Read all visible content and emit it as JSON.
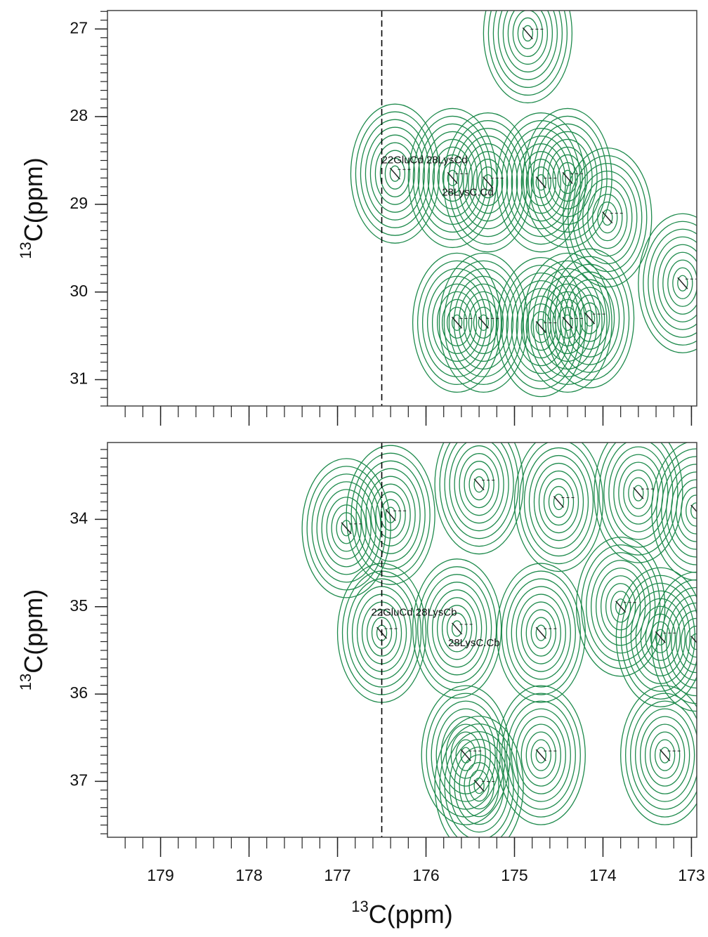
{
  "chart_data": [
    {
      "type": "contour",
      "xlim": [
        179.6,
        172.94
      ],
      "ylim": [
        26.79,
        31.3
      ],
      "xticks": [
        179,
        178,
        177,
        176,
        175,
        174,
        173
      ],
      "show_xtick_labels": false,
      "yticks": [
        27,
        28,
        29,
        30,
        31
      ],
      "x_minor_step": 0.2,
      "y_minor_step": 0.1,
      "ylabel_sup": "13",
      "ylabel": "C(ppm)",
      "color": "#1e8a4c",
      "reference_x": 176.5,
      "peaks": {
        "x": [
          176.35,
          175.7,
          175.3,
          174.7,
          174.4,
          173.95,
          175.65,
          175.35,
          174.7,
          174.4,
          174.15,
          174.85,
          173.1
        ],
        "y": [
          28.65,
          28.7,
          28.75,
          28.75,
          28.7,
          29.15,
          30.35,
          30.35,
          30.4,
          30.35,
          30.3,
          27.05,
          29.9
        ]
      },
      "annotations": [
        {
          "text": "22GluCd 28LysCd",
          "x": 176.5,
          "y": 28.5
        },
        {
          "text": "28LysC.Cd",
          "x": 175.82,
          "y": 28.87
        }
      ]
    },
    {
      "type": "contour",
      "xlim": [
        179.6,
        172.94
      ],
      "ylim": [
        33.12,
        37.64
      ],
      "xticks": [
        179,
        178,
        177,
        176,
        175,
        174,
        173
      ],
      "show_xtick_labels": true,
      "yticks": [
        34,
        35,
        36,
        37
      ],
      "x_minor_step": 0.2,
      "y_minor_step": 0.1,
      "ylabel_sup": "13",
      "ylabel": "C(ppm)",
      "xlabel_sup": "13",
      "xlabel": "C(ppm)",
      "color": "#1e8a4c",
      "reference_x": 176.5,
      "peaks": {
        "x": [
          176.9,
          176.4,
          176.5,
          175.65,
          175.4,
          174.5,
          174.7,
          173.6,
          173.8,
          173.35,
          172.95,
          175.55,
          175.4,
          174.7,
          173.3,
          172.95
        ],
        "y": [
          34.1,
          33.95,
          35.3,
          35.25,
          33.6,
          33.8,
          35.3,
          33.7,
          35.0,
          35.35,
          33.9,
          36.7,
          37.05,
          36.7,
          36.7,
          35.4
        ]
      },
      "annotations": [
        {
          "text": "22GluCd 28LysCb",
          "x": 176.62,
          "y": 35.07
        },
        {
          "text": "28LysC.Cb",
          "x": 175.75,
          "y": 35.42
        }
      ]
    }
  ]
}
